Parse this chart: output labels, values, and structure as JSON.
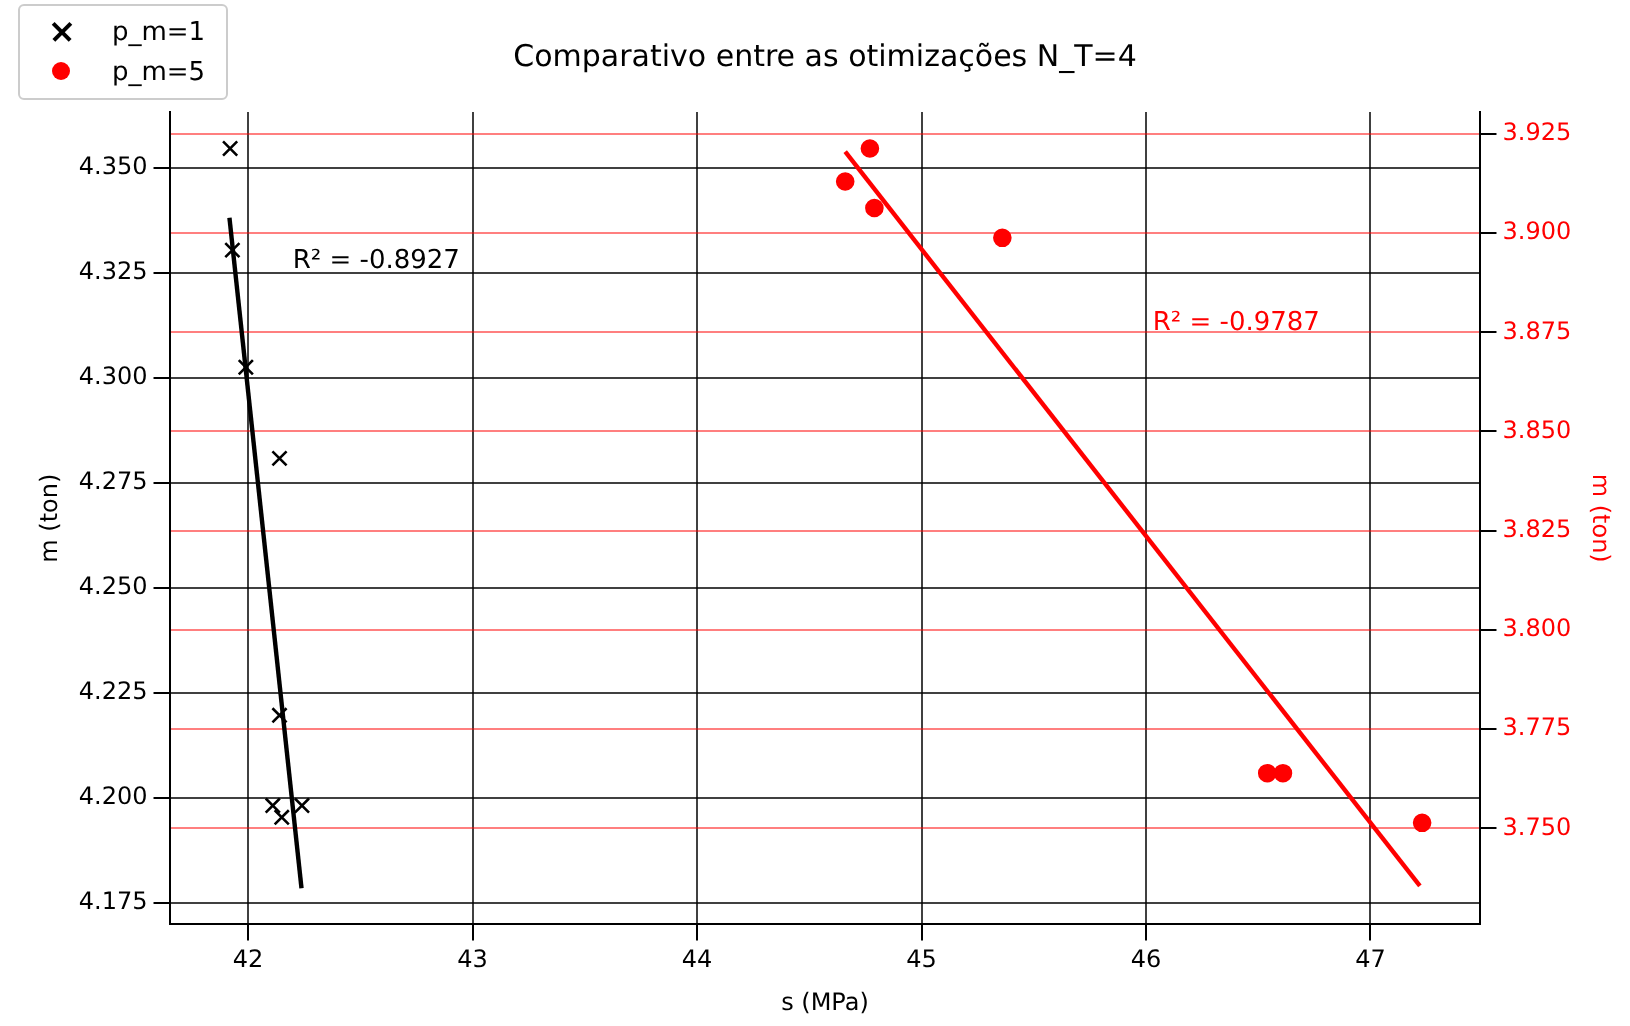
{
  "chart_data": {
    "type": "scatter",
    "title": "Comparativo entre as otimizações N_T=4",
    "xlabel": "s (MPa)",
    "ylabel": "m (ton)",
    "y2label": "m (ton)",
    "xlim": [
      41.65,
      47.49
    ],
    "xticks": [
      42,
      43,
      44,
      45,
      46,
      47
    ],
    "ylim": [
      4.1698,
      4.3633
    ],
    "yticks": [
      4.175,
      {
        "value": 4.2,
        "label": "4.200"
      },
      4.225,
      {
        "value": 4.25,
        "label": "4.250"
      },
      4.275,
      {
        "value": 4.3,
        "label": "4.300"
      },
      4.325,
      {
        "value": 4.35,
        "label": "4.350"
      }
    ],
    "y2lim": [
      3.7258,
      3.9305
    ],
    "y2ticks": [
      {
        "value": 3.75,
        "label": "3.750"
      },
      3.775,
      {
        "value": 3.8,
        "label": "3.800"
      },
      3.825,
      {
        "value": 3.85,
        "label": "3.850"
      },
      3.875,
      {
        "value": 3.9,
        "label": "3.900"
      },
      3.925
    ],
    "grid": true,
    "legend": "top left",
    "series": [
      {
        "name": "p_m=1",
        "color": "#000000",
        "marker": "cross",
        "x": [
          41.92,
          41.93,
          41.99,
          42.14,
          42.14,
          42.11,
          42.15,
          42.24
        ],
        "values": [
          4.3546,
          4.3304,
          4.3025,
          4.2808,
          4.2196,
          4.1981,
          4.1953,
          4.1981
        ]
      },
      {
        "name": "p_m=5",
        "color": "#ff0000",
        "marker": "circle",
        "axis": "y2",
        "x": [
          44.77,
          44.66,
          44.79,
          45.36,
          46.54,
          46.61,
          47.23
        ],
        "values": [
          3.9213,
          3.913,
          3.9063,
          3.8988,
          3.7639,
          3.7639,
          3.7514
        ]
      },
      {
        "type": "line",
        "color": "#000000",
        "marker": "none",
        "x": [
          41.917,
          42.238
        ],
        "values": [
          4.3381,
          4.1784
        ]
      },
      {
        "type": "line",
        "color": "#ff0000",
        "marker": "none",
        "axis": "y2",
        "x": [
          44.66,
          47.22
        ],
        "values": [
          3.9205,
          3.7355
        ]
      }
    ],
    "annotations": [
      "R² = -0.8927",
      "R² = -0.9787"
    ]
  }
}
